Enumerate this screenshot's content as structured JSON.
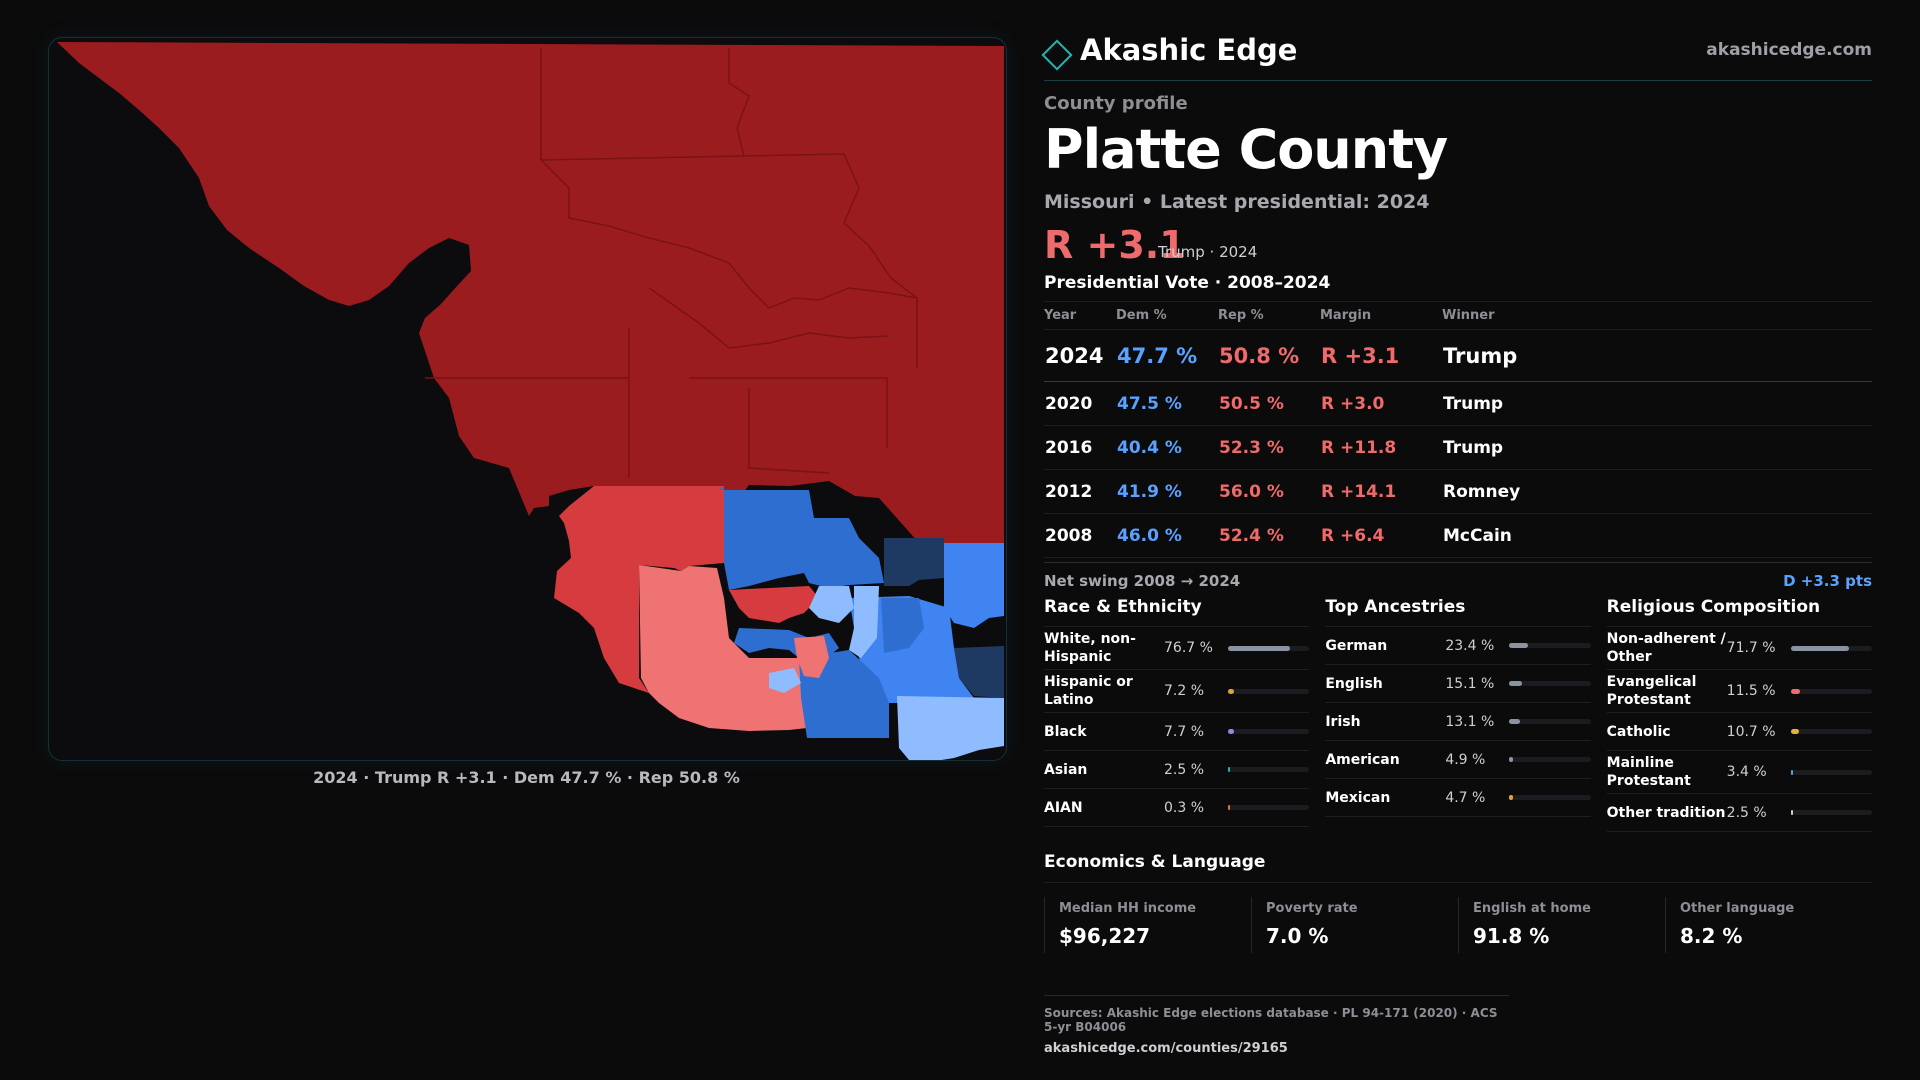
{
  "brand": {
    "name": "Akashic Edge",
    "site": "akashicedge.com"
  },
  "profile": {
    "eyebrow": "County profile",
    "title": "Platte County",
    "subtitle": "Missouri • Latest presidential: 2024",
    "margin": "R +3.1",
    "margin_sub": "Trump · 2024"
  },
  "map": {
    "caption": "2024 · Trump R +3.1 · Dem 47.7 % · Rep 50.8 %",
    "colors": {
      "safe_r": "#9b1c1f",
      "lean_r": "#d63c3f",
      "tilt_r": "#f07373",
      "safe_d": "#1e3a63",
      "lean_d": "#2f6ed1",
      "likely_d": "#3f84f0",
      "tilt_d": "#8ebcff"
    }
  },
  "votes": {
    "heading": "Presidential Vote · 2008–2024",
    "columns": [
      "Year",
      "Dem %",
      "Rep %",
      "Margin",
      "Winner"
    ],
    "rows": [
      {
        "year": "2024",
        "dem": "47.7 %",
        "rep": "50.8 %",
        "margin": "R +3.1",
        "winner": "Trump"
      },
      {
        "year": "2020",
        "dem": "47.5 %",
        "rep": "50.5 %",
        "margin": "R +3.0",
        "winner": "Trump"
      },
      {
        "year": "2016",
        "dem": "40.4 %",
        "rep": "52.3 %",
        "margin": "R +11.8",
        "winner": "Trump"
      },
      {
        "year": "2012",
        "dem": "41.9 %",
        "rep": "56.0 %",
        "margin": "R +14.1",
        "winner": "Romney"
      },
      {
        "year": "2008",
        "dem": "46.0 %",
        "rep": "52.4 %",
        "margin": "R +6.4",
        "winner": "McCain"
      }
    ],
    "swing_label": "Net swing 2008 → 2024",
    "swing_value": "D +3.3 pts"
  },
  "race": {
    "heading": "Race & Ethnicity",
    "items": [
      {
        "label": "White, non-Hispanic",
        "value": "76.7 %",
        "pct": 76.7,
        "color": "#8b93a3"
      },
      {
        "label": "Hispanic or Latino",
        "value": "7.2 %",
        "pct": 7.2,
        "color": "#e0a03a"
      },
      {
        "label": "Black",
        "value": "7.7 %",
        "pct": 7.7,
        "color": "#9b86e8"
      },
      {
        "label": "Asian",
        "value": "2.5 %",
        "pct": 2.5,
        "color": "#2bb3a3"
      },
      {
        "label": "AIAN",
        "value": "0.3 %",
        "pct": 0.3,
        "color": "#d9743a"
      }
    ]
  },
  "ancestry": {
    "heading": "Top Ancestries",
    "items": [
      {
        "label": "German",
        "value": "23.4 %",
        "pct": 23.4,
        "color": "#8b93a3"
      },
      {
        "label": "English",
        "value": "15.1 %",
        "pct": 15.1,
        "color": "#8b93a3"
      },
      {
        "label": "Irish",
        "value": "13.1 %",
        "pct": 13.1,
        "color": "#8b93a3"
      },
      {
        "label": "American",
        "value": "4.9 %",
        "pct": 4.9,
        "color": "#8b93a3"
      },
      {
        "label": "Mexican",
        "value": "4.7 %",
        "pct": 4.7,
        "color": "#e0a03a"
      }
    ]
  },
  "religion": {
    "heading": "Religious Composition",
    "items": [
      {
        "label": "Non-adherent / Other",
        "value": "71.7 %",
        "pct": 71.7,
        "color": "#8b93a3"
      },
      {
        "label": "Evangelical Protestant",
        "value": "11.5 %",
        "pct": 11.5,
        "color": "#ef6b6b"
      },
      {
        "label": "Catholic",
        "value": "10.7 %",
        "pct": 10.7,
        "color": "#e0b23a"
      },
      {
        "label": "Mainline Protestant",
        "value": "3.4 %",
        "pct": 3.4,
        "color": "#4aa8e8"
      },
      {
        "label": "Other tradition",
        "value": "2.5 %",
        "pct": 2.5,
        "color": "#cfcfd4"
      }
    ]
  },
  "econ": {
    "heading": "Economics & Language",
    "cards": [
      {
        "label": "Median HH income",
        "value": "$96,227"
      },
      {
        "label": "Poverty rate",
        "value": "7.0 %"
      },
      {
        "label": "English at home",
        "value": "91.8 %"
      },
      {
        "label": "Other language",
        "value": "8.2 %"
      }
    ]
  },
  "sources": {
    "line1": "Sources: Akashic Edge elections database · PL 94-171 (2020) · ACS 5-yr B04006",
    "line2": "akashicedge.com/counties/29165"
  }
}
